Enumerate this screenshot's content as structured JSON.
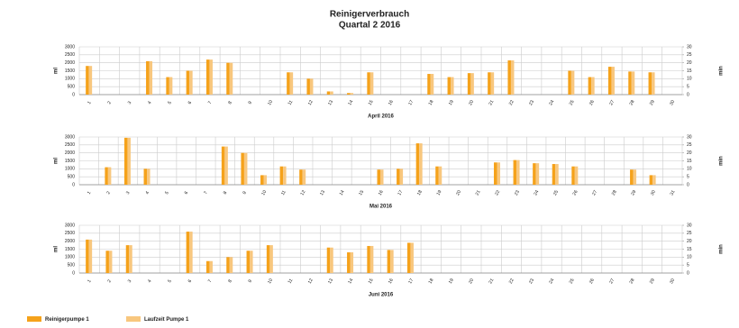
{
  "title": "Reinigerverbrauch",
  "subtitle": "Quartal 2 2016",
  "chart_data": [
    {
      "type": "bar",
      "xlabel": "April 2016",
      "ylabel": "ml",
      "y2label": "min",
      "categories": [
        "1",
        "2",
        "3",
        "4",
        "5",
        "6",
        "7",
        "8",
        "9",
        "10",
        "11",
        "12",
        "13",
        "14",
        "15",
        "16",
        "17",
        "18",
        "19",
        "20",
        "21",
        "22",
        "23",
        "24",
        "25",
        "26",
        "27",
        "28",
        "29",
        "30"
      ],
      "ylim": [
        0,
        3000
      ],
      "yticks": [
        0,
        500,
        1000,
        1500,
        2000,
        2500,
        3000
      ],
      "y2lim": [
        0,
        30
      ],
      "y2ticks": [
        0,
        5,
        10,
        15,
        20,
        25,
        30
      ],
      "grid": true,
      "series": [
        {
          "name": "Reinigerpumpe 1",
          "color": "#f5a21b",
          "values": [
            1800,
            0,
            0,
            2100,
            1100,
            1500,
            2200,
            2000,
            0,
            0,
            1400,
            1000,
            200,
            100,
            1400,
            0,
            0,
            1300,
            1100,
            1350,
            1400,
            2150,
            0,
            0,
            1500,
            1100,
            1750,
            1450,
            1400,
            0
          ]
        },
        {
          "name": "Laufzeit Pumpe 1",
          "color": "#f8c77e",
          "axis": "y2",
          "values": [
            18,
            0,
            0,
            21,
            11,
            15,
            22,
            20,
            0,
            0,
            14,
            10,
            2,
            1,
            14,
            0,
            0,
            13,
            11,
            13.5,
            14,
            21.5,
            0,
            0,
            15,
            11,
            17.5,
            14.5,
            14,
            0
          ]
        }
      ]
    },
    {
      "type": "bar",
      "xlabel": "Mai 2016",
      "ylabel": "ml",
      "y2label": "min",
      "categories": [
        "1",
        "2",
        "3",
        "4",
        "5",
        "6",
        "7",
        "8",
        "9",
        "10",
        "11",
        "12",
        "13",
        "14",
        "15",
        "16",
        "17",
        "18",
        "19",
        "20",
        "21",
        "22",
        "23",
        "24",
        "25",
        "26",
        "27",
        "28",
        "29",
        "30",
        "31"
      ],
      "ylim": [
        0,
        3000
      ],
      "yticks": [
        0,
        500,
        1000,
        1500,
        2000,
        2500,
        3000
      ],
      "y2lim": [
        0,
        30
      ],
      "y2ticks": [
        0,
        5,
        10,
        15,
        20,
        25,
        30
      ],
      "grid": true,
      "series": [
        {
          "name": "Reinigerpumpe 1",
          "color": "#f5a21b",
          "values": [
            0,
            1100,
            2950,
            1000,
            0,
            0,
            0,
            2400,
            2000,
            600,
            1150,
            950,
            0,
            0,
            0,
            950,
            1000,
            2600,
            1150,
            0,
            0,
            1400,
            1550,
            1350,
            1300,
            1150,
            0,
            0,
            950,
            600,
            0
          ]
        },
        {
          "name": "Laufzeit Pumpe 1",
          "color": "#f8c77e",
          "axis": "y2",
          "values": [
            0,
            11,
            29.5,
            10,
            0,
            0,
            0,
            24,
            20,
            6,
            11.5,
            9.5,
            0,
            0,
            0,
            9.5,
            10,
            26,
            11.5,
            0,
            0,
            14,
            15.5,
            13.5,
            13,
            11.5,
            0,
            0,
            9.5,
            6,
            0
          ]
        }
      ]
    },
    {
      "type": "bar",
      "xlabel": "Juni 2016",
      "ylabel": "ml",
      "y2label": "min",
      "categories": [
        "1",
        "2",
        "3",
        "4",
        "5",
        "6",
        "7",
        "8",
        "9",
        "10",
        "11",
        "12",
        "13",
        "14",
        "15",
        "16",
        "17",
        "18",
        "19",
        "20",
        "21",
        "22",
        "23",
        "24",
        "25",
        "26",
        "27",
        "28",
        "29",
        "30"
      ],
      "ylim": [
        0,
        3000
      ],
      "yticks": [
        0,
        500,
        1000,
        1500,
        2000,
        2500,
        3000
      ],
      "y2lim": [
        0,
        30
      ],
      "y2ticks": [
        0,
        5,
        10,
        15,
        20,
        25,
        30
      ],
      "grid": true,
      "series": [
        {
          "name": "Reinigerpumpe 1",
          "color": "#f5a21b",
          "values": [
            2100,
            1400,
            1750,
            0,
            0,
            2600,
            750,
            1000,
            1400,
            1750,
            0,
            0,
            1600,
            1300,
            1700,
            1450,
            1900,
            0,
            0,
            0,
            0,
            0,
            0,
            0,
            0,
            0,
            0,
            0,
            0,
            0
          ]
        },
        {
          "name": "Laufzeit Pumpe 1",
          "color": "#f8c77e",
          "axis": "y2",
          "values": [
            21,
            14,
            17.5,
            0,
            0,
            26,
            7.5,
            10,
            14,
            17.5,
            0,
            0,
            16,
            13,
            17,
            14.5,
            19,
            0,
            0,
            0,
            0,
            0,
            0,
            0,
            0,
            0,
            0,
            0,
            0,
            0
          ]
        }
      ]
    }
  ]
}
